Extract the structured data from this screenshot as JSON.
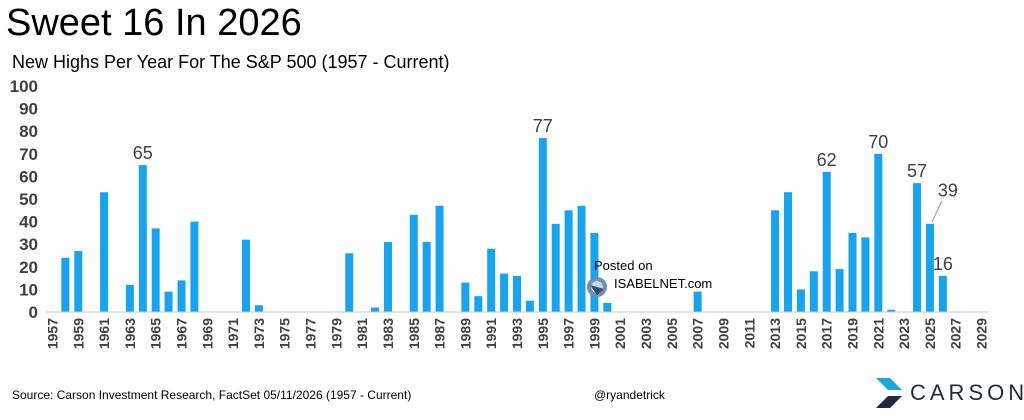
{
  "header": {
    "title": "Sweet 16 In 2026",
    "subtitle": "New Highs Per Year For The S&P 500 (1957 - Current)"
  },
  "footer": {
    "source": "Source: Carson Investment Research, FactSet 05/11/2026 (1957 - Current)",
    "handle": "@ryandetrick",
    "brand": "CARSON"
  },
  "watermark": {
    "posted_on": "Posted on",
    "site": "ISABELNET.com"
  },
  "colors": {
    "bar": "#16a3ef",
    "brand_teal": "#1ba7d8",
    "brand_navy": "#1f2a3a"
  },
  "chart_data": {
    "type": "bar",
    "title": "Sweet 16 In 2026",
    "subtitle": "New Highs Per Year For The S&P 500 (1957 - Current)",
    "xlabel": "",
    "ylabel": "",
    "ylim": [
      0,
      100
    ],
    "y_ticks": [
      0,
      10,
      20,
      30,
      40,
      50,
      60,
      70,
      80,
      90,
      100
    ],
    "x_range": [
      1957,
      2029
    ],
    "x_tick_labels": [
      1957,
      1959,
      1961,
      1963,
      1965,
      1967,
      1969,
      1971,
      1973,
      1975,
      1977,
      1979,
      1981,
      1983,
      1985,
      1987,
      1989,
      1991,
      1993,
      1995,
      1997,
      1999,
      2001,
      2003,
      2005,
      2007,
      2009,
      2011,
      2013,
      2015,
      2017,
      2019,
      2021,
      2023,
      2025,
      2027,
      2029
    ],
    "grid": false,
    "legend": "none",
    "points": [
      {
        "year": 1958,
        "value": 24
      },
      {
        "year": 1959,
        "value": 27
      },
      {
        "year": 1961,
        "value": 53
      },
      {
        "year": 1963,
        "value": 12
      },
      {
        "year": 1964,
        "value": 65
      },
      {
        "year": 1965,
        "value": 37
      },
      {
        "year": 1966,
        "value": 9
      },
      {
        "year": 1967,
        "value": 14
      },
      {
        "year": 1968,
        "value": 40
      },
      {
        "year": 1972,
        "value": 32
      },
      {
        "year": 1973,
        "value": 3
      },
      {
        "year": 1980,
        "value": 26
      },
      {
        "year": 1982,
        "value": 2
      },
      {
        "year": 1983,
        "value": 31
      },
      {
        "year": 1985,
        "value": 43
      },
      {
        "year": 1986,
        "value": 31
      },
      {
        "year": 1987,
        "value": 47
      },
      {
        "year": 1989,
        "value": 13
      },
      {
        "year": 1990,
        "value": 7
      },
      {
        "year": 1991,
        "value": 28
      },
      {
        "year": 1992,
        "value": 17
      },
      {
        "year": 1993,
        "value": 16
      },
      {
        "year": 1994,
        "value": 5
      },
      {
        "year": 1995,
        "value": 77
      },
      {
        "year": 1996,
        "value": 39
      },
      {
        "year": 1997,
        "value": 45
      },
      {
        "year": 1998,
        "value": 47
      },
      {
        "year": 1999,
        "value": 35
      },
      {
        "year": 2000,
        "value": 4
      },
      {
        "year": 2007,
        "value": 9
      },
      {
        "year": 2013,
        "value": 45
      },
      {
        "year": 2014,
        "value": 53
      },
      {
        "year": 2015,
        "value": 10
      },
      {
        "year": 2016,
        "value": 18
      },
      {
        "year": 2017,
        "value": 62
      },
      {
        "year": 2018,
        "value": 19
      },
      {
        "year": 2019,
        "value": 35
      },
      {
        "year": 2020,
        "value": 33
      },
      {
        "year": 2021,
        "value": 70
      },
      {
        "year": 2022,
        "value": 1
      },
      {
        "year": 2024,
        "value": 57
      },
      {
        "year": 2025,
        "value": 39
      },
      {
        "year": 2026,
        "value": 16
      }
    ],
    "annotations": [
      {
        "year": 1964,
        "label": "65"
      },
      {
        "year": 1995,
        "label": "77"
      },
      {
        "year": 2017,
        "label": "62"
      },
      {
        "year": 2021,
        "label": "70"
      },
      {
        "year": 2024,
        "label": "57"
      },
      {
        "year": 2025,
        "label": "39",
        "callout": true
      },
      {
        "year": 2026,
        "label": "16"
      }
    ]
  }
}
